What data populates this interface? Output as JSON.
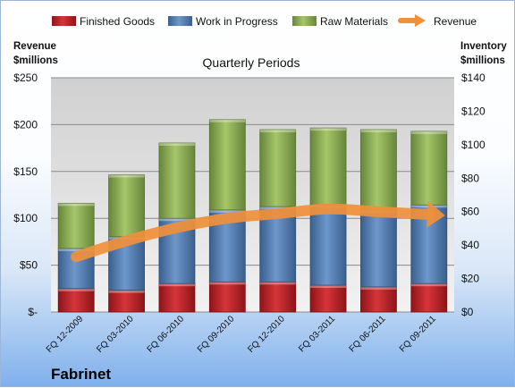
{
  "company": "Fabrinet",
  "chart_data": {
    "type": "bar",
    "stacked": true,
    "title": "Quarterly Periods",
    "categories": [
      "FQ 12-2009",
      "FQ 03-2010",
      "FQ 06-2010",
      "FQ 09-2010",
      "FQ 12-2010",
      "FQ 03-2011",
      "FQ 06-2011",
      "FQ 09-2011"
    ],
    "y_left": {
      "label_line1": "Revenue",
      "label_line2": "$millions",
      "range": [
        0,
        250
      ],
      "ticks": [
        0,
        50,
        100,
        150,
        200,
        250
      ],
      "tick_labels": [
        "$-",
        "$50",
        "$100",
        "$150",
        "$200",
        "$250"
      ]
    },
    "y_right": {
      "label_line1": "Inventory",
      "label_line2": "$millions",
      "range": [
        0,
        140
      ],
      "ticks": [
        0,
        20,
        40,
        60,
        80,
        100,
        120,
        140
      ],
      "tick_labels": [
        "$0",
        "$20",
        "$40",
        "$60",
        "$80",
        "$100",
        "$120",
        "$140"
      ]
    },
    "series": [
      {
        "name": "Finished Goods",
        "axis": "right",
        "color": "#c0272d",
        "values": [
          14,
          13,
          17,
          18,
          18,
          16,
          15,
          17
        ]
      },
      {
        "name": "Work in Progress",
        "axis": "right",
        "color": "#4f81bd",
        "values": [
          24,
          32,
          39,
          43,
          45,
          48,
          46,
          47
        ]
      },
      {
        "name": "Raw Materials",
        "axis": "right",
        "color": "#8db24c",
        "values": [
          27,
          37,
          45,
          54,
          46,
          46,
          48,
          44
        ]
      },
      {
        "name": "Revenue",
        "axis": "left",
        "type": "line",
        "color": "#f0903a",
        "values": [
          59,
          76,
          90,
          100,
          105,
          110,
          107,
          104
        ]
      }
    ],
    "legend_position": "top",
    "grid": true
  }
}
